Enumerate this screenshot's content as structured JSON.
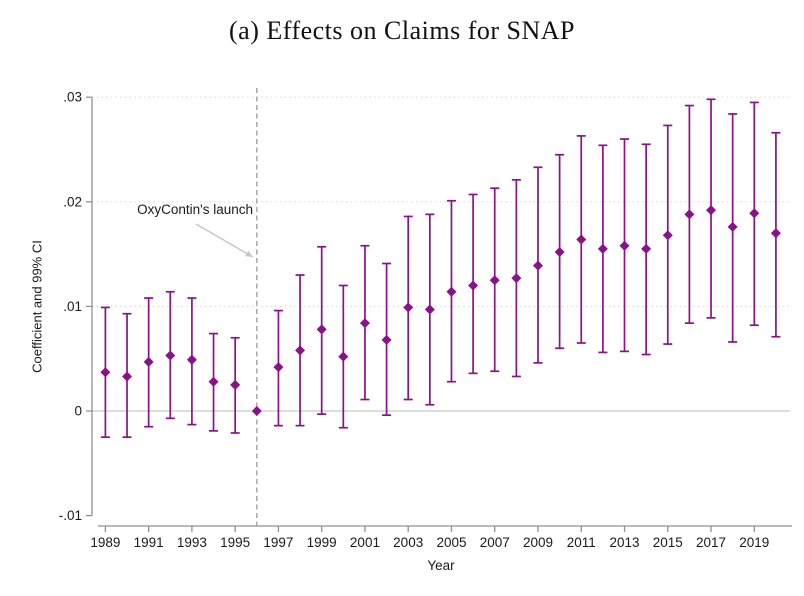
{
  "chart_data": {
    "type": "scatter",
    "subtype": "coefficient-errorbar-plot",
    "title": "(a) Effects on Claims for SNAP",
    "xlabel": "Year",
    "ylabel": "Coefficient and 99% CI",
    "x_tick_labels": [
      "1989",
      "1991",
      "1993",
      "1995",
      "1997",
      "1999",
      "2001",
      "2003",
      "2005",
      "2007",
      "2009",
      "2011",
      "2013",
      "2015",
      "2017",
      "2019"
    ],
    "x_ticks": [
      1989,
      1991,
      1993,
      1995,
      1997,
      1999,
      2001,
      2003,
      2005,
      2007,
      2009,
      2011,
      2013,
      2015,
      2017,
      2019
    ],
    "y_ticks": [
      {
        "v": -0.01,
        "label": "-.01"
      },
      {
        "v": 0,
        "label": "0"
      },
      {
        "v": 0.01,
        "label": ".01"
      },
      {
        "v": 0.02,
        "label": ".02"
      },
      {
        "v": 0.03,
        "label": ".03"
      }
    ],
    "xlim": [
      1988.3,
      2020.8
    ],
    "ylim": [
      -0.0112,
      0.0306
    ],
    "grid": {
      "horizontal_dotted_at": [
        0.01,
        0.02,
        0.03
      ],
      "solid_zero_line": true,
      "vertical": false
    },
    "legend": "none",
    "reference_line": {
      "x": 1996,
      "style": "dashed-vertical"
    },
    "annotation": {
      "text": "OxyContin's launch",
      "arrow_points_to_year": 1996
    },
    "colors": {
      "series": "#8b108b",
      "reference_line": "#a3a3a3",
      "grid": "#dadada",
      "zero_line": "#c9c9c9",
      "axis": "#919191",
      "arrow": "#c6c6c6",
      "text": "#1a1a1a"
    },
    "points": [
      {
        "year": 1989,
        "coef": 0.0037,
        "ci_low": -0.0025,
        "ci_high": 0.0099
      },
      {
        "year": 1990,
        "coef": 0.0033,
        "ci_low": -0.0025,
        "ci_high": 0.0093
      },
      {
        "year": 1991,
        "coef": 0.0047,
        "ci_low": -0.0015,
        "ci_high": 0.0108
      },
      {
        "year": 1992,
        "coef": 0.0053,
        "ci_low": -0.0007,
        "ci_high": 0.0114
      },
      {
        "year": 1993,
        "coef": 0.0049,
        "ci_low": -0.0013,
        "ci_high": 0.0108
      },
      {
        "year": 1994,
        "coef": 0.0028,
        "ci_low": -0.0019,
        "ci_high": 0.0074
      },
      {
        "year": 1995,
        "coef": 0.0025,
        "ci_low": -0.0021,
        "ci_high": 0.007
      },
      {
        "year": 1996,
        "coef": 0.0,
        "ci_low": null,
        "ci_high": null
      },
      {
        "year": 1997,
        "coef": 0.0042,
        "ci_low": -0.0014,
        "ci_high": 0.0096
      },
      {
        "year": 1998,
        "coef": 0.0058,
        "ci_low": -0.0014,
        "ci_high": 0.013
      },
      {
        "year": 1999,
        "coef": 0.0078,
        "ci_low": -0.0003,
        "ci_high": 0.0157
      },
      {
        "year": 2000,
        "coef": 0.0052,
        "ci_low": -0.0016,
        "ci_high": 0.012
      },
      {
        "year": 2001,
        "coef": 0.0084,
        "ci_low": 0.0011,
        "ci_high": 0.0158
      },
      {
        "year": 2002,
        "coef": 0.0068,
        "ci_low": -0.0004,
        "ci_high": 0.0141
      },
      {
        "year": 2003,
        "coef": 0.0099,
        "ci_low": 0.0011,
        "ci_high": 0.0186
      },
      {
        "year": 2004,
        "coef": 0.0097,
        "ci_low": 0.0006,
        "ci_high": 0.0188
      },
      {
        "year": 2005,
        "coef": 0.0114,
        "ci_low": 0.0028,
        "ci_high": 0.0201
      },
      {
        "year": 2006,
        "coef": 0.012,
        "ci_low": 0.0036,
        "ci_high": 0.0207
      },
      {
        "year": 2007,
        "coef": 0.0125,
        "ci_low": 0.0038,
        "ci_high": 0.0213
      },
      {
        "year": 2008,
        "coef": 0.0127,
        "ci_low": 0.0033,
        "ci_high": 0.0221
      },
      {
        "year": 2009,
        "coef": 0.0139,
        "ci_low": 0.0046,
        "ci_high": 0.0233
      },
      {
        "year": 2010,
        "coef": 0.0152,
        "ci_low": 0.006,
        "ci_high": 0.0245
      },
      {
        "year": 2011,
        "coef": 0.0164,
        "ci_low": 0.0065,
        "ci_high": 0.0263
      },
      {
        "year": 2012,
        "coef": 0.0155,
        "ci_low": 0.0056,
        "ci_high": 0.0254
      },
      {
        "year": 2013,
        "coef": 0.0158,
        "ci_low": 0.0057,
        "ci_high": 0.026
      },
      {
        "year": 2014,
        "coef": 0.0155,
        "ci_low": 0.0054,
        "ci_high": 0.0255
      },
      {
        "year": 2015,
        "coef": 0.0168,
        "ci_low": 0.0064,
        "ci_high": 0.0273
      },
      {
        "year": 2016,
        "coef": 0.0188,
        "ci_low": 0.0084,
        "ci_high": 0.0292
      },
      {
        "year": 2017,
        "coef": 0.0192,
        "ci_low": 0.0089,
        "ci_high": 0.0298
      },
      {
        "year": 2018,
        "coef": 0.0176,
        "ci_low": 0.0066,
        "ci_high": 0.0284
      },
      {
        "year": 2019,
        "coef": 0.0189,
        "ci_low": 0.0082,
        "ci_high": 0.0295
      },
      {
        "year": 2020,
        "coef": 0.017,
        "ci_low": 0.0071,
        "ci_high": 0.0266
      }
    ]
  }
}
